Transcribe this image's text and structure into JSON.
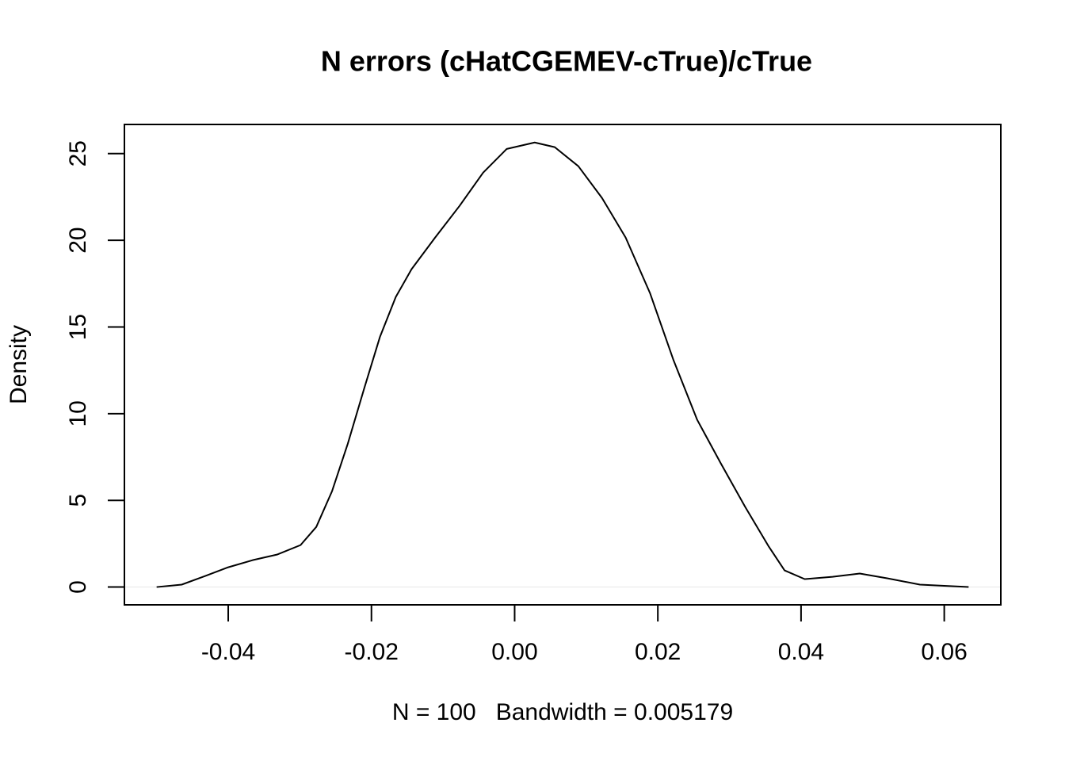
{
  "chart_data": {
    "type": "line",
    "title": "N errors (cHatCGEMEV-cTrue)/cTrue",
    "x_label": "N = 100   Bandwidth = 0.005179",
    "y_label": "Density",
    "x": [
      -0.05,
      -0.0465,
      -0.0432,
      -0.04,
      -0.0366,
      -0.0332,
      -0.0299,
      -0.0277,
      -0.0255,
      -0.0233,
      -0.021,
      -0.0188,
      -0.0166,
      -0.0144,
      -0.0111,
      -0.0077,
      -0.0044,
      -0.0011,
      0.0028,
      0.0056,
      0.0089,
      0.0122,
      0.0155,
      0.0189,
      0.0222,
      0.0255,
      0.0288,
      0.0322,
      0.0355,
      0.0377,
      0.0405,
      0.0444,
      0.0482,
      0.0521,
      0.0566,
      0.0634
    ],
    "values": [
      0,
      0.14,
      0.64,
      1.14,
      1.55,
      1.87,
      2.42,
      3.47,
      5.53,
      8.27,
      11.47,
      14.44,
      16.73,
      18.33,
      20.16,
      21.98,
      23.9,
      25.27,
      25.64,
      25.37,
      24.27,
      22.44,
      20.16,
      16.96,
      13.07,
      9.64,
      7.13,
      4.62,
      2.33,
      0.96,
      0.46,
      0.59,
      0.78,
      0.5,
      0.14,
      0
    ],
    "color": "#000000",
    "xlim": [
      -0.0545,
      0.0679
    ],
    "ylim": [
      -1.026,
      26.68
    ],
    "xticks": [
      -0.04,
      -0.02,
      {
        "value": 0,
        "label": "0.00"
      },
      0.02,
      0.04,
      0.06
    ],
    "yticks": [
      0,
      5,
      10,
      15,
      20,
      25
    ]
  }
}
